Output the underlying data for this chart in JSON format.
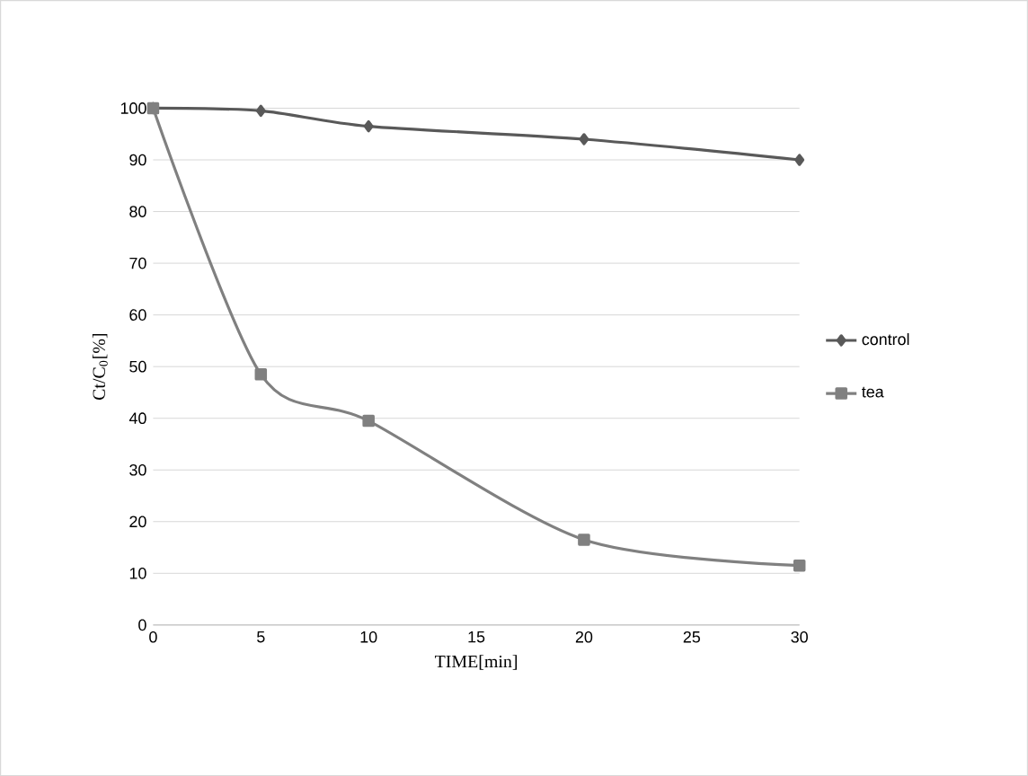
{
  "chart_data": {
    "type": "line",
    "xlabel": "TIME[min]",
    "ylabel": "Ct/C$_{0}$[%]",
    "x": [
      0,
      5,
      10,
      20,
      30
    ],
    "series": [
      {
        "name": "control",
        "color": "#595959",
        "marker": "diamond",
        "values": [
          100,
          99.5,
          96.5,
          94,
          90
        ]
      },
      {
        "name": "tea",
        "color": "#808080",
        "marker": "square",
        "values": [
          100,
          48.5,
          39.5,
          16.5,
          11.5
        ]
      }
    ],
    "xlim": [
      0,
      30
    ],
    "xticks": [
      0,
      5,
      10,
      15,
      20,
      25,
      30
    ],
    "ylim": [
      0,
      100
    ],
    "yticks": [
      0,
      10,
      20,
      30,
      40,
      50,
      60,
      70,
      80,
      90,
      100
    ],
    "grid": "y",
    "legend": "right",
    "line_style": "solid"
  }
}
